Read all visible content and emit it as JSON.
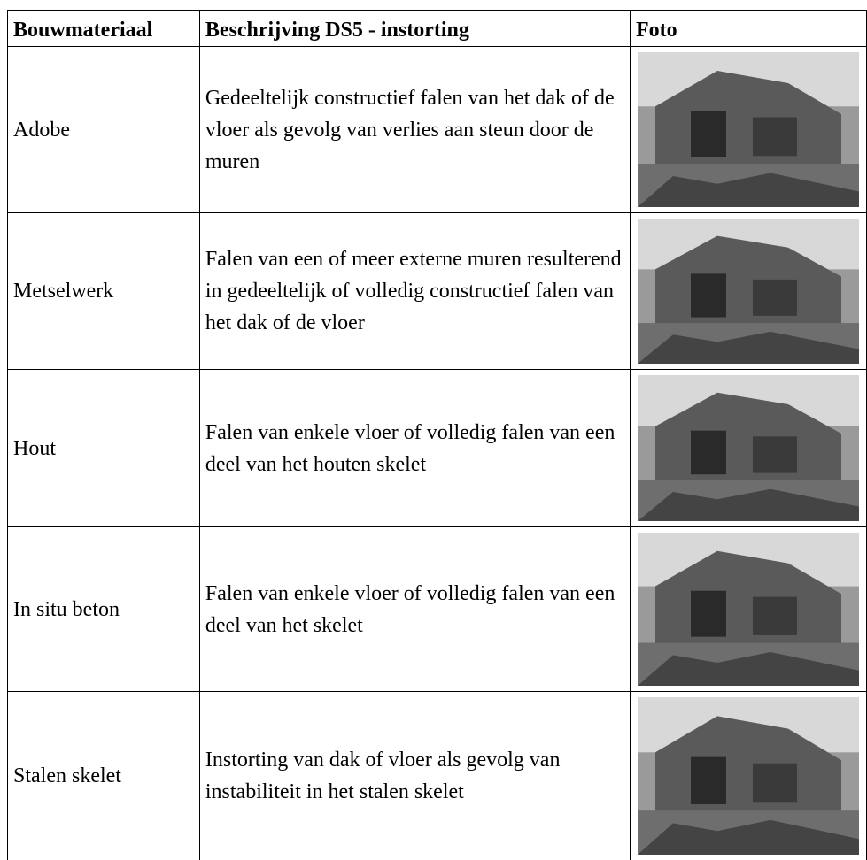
{
  "table": {
    "header": [
      "Bouwmateriaal",
      "Beschrijving DS5 - instorting",
      "Foto"
    ],
    "rows": [
      [
        "Adobe",
        "Gedeeltelijk constructief falen van het dak of de vloer als gevolg van verlies aan steun door de muren"
      ],
      [
        "Metselwerk",
        "Falen van een of meer externe muren resulterend in gedeeltelijk of volledig constructief falen van het dak of de vloer"
      ],
      [
        "Hout",
        "Falen van enkele vloer of volledig falen van een deel van het houten skelet"
      ],
      [
        "In situ beton",
        "Falen van enkele vloer of volledig falen van een deel van het skelet"
      ],
      [
        "Stalen skelet",
        "Instorting van dak of vloer als gevolg van instabiliteit in het stalen skelet"
      ]
    ]
  }
}
